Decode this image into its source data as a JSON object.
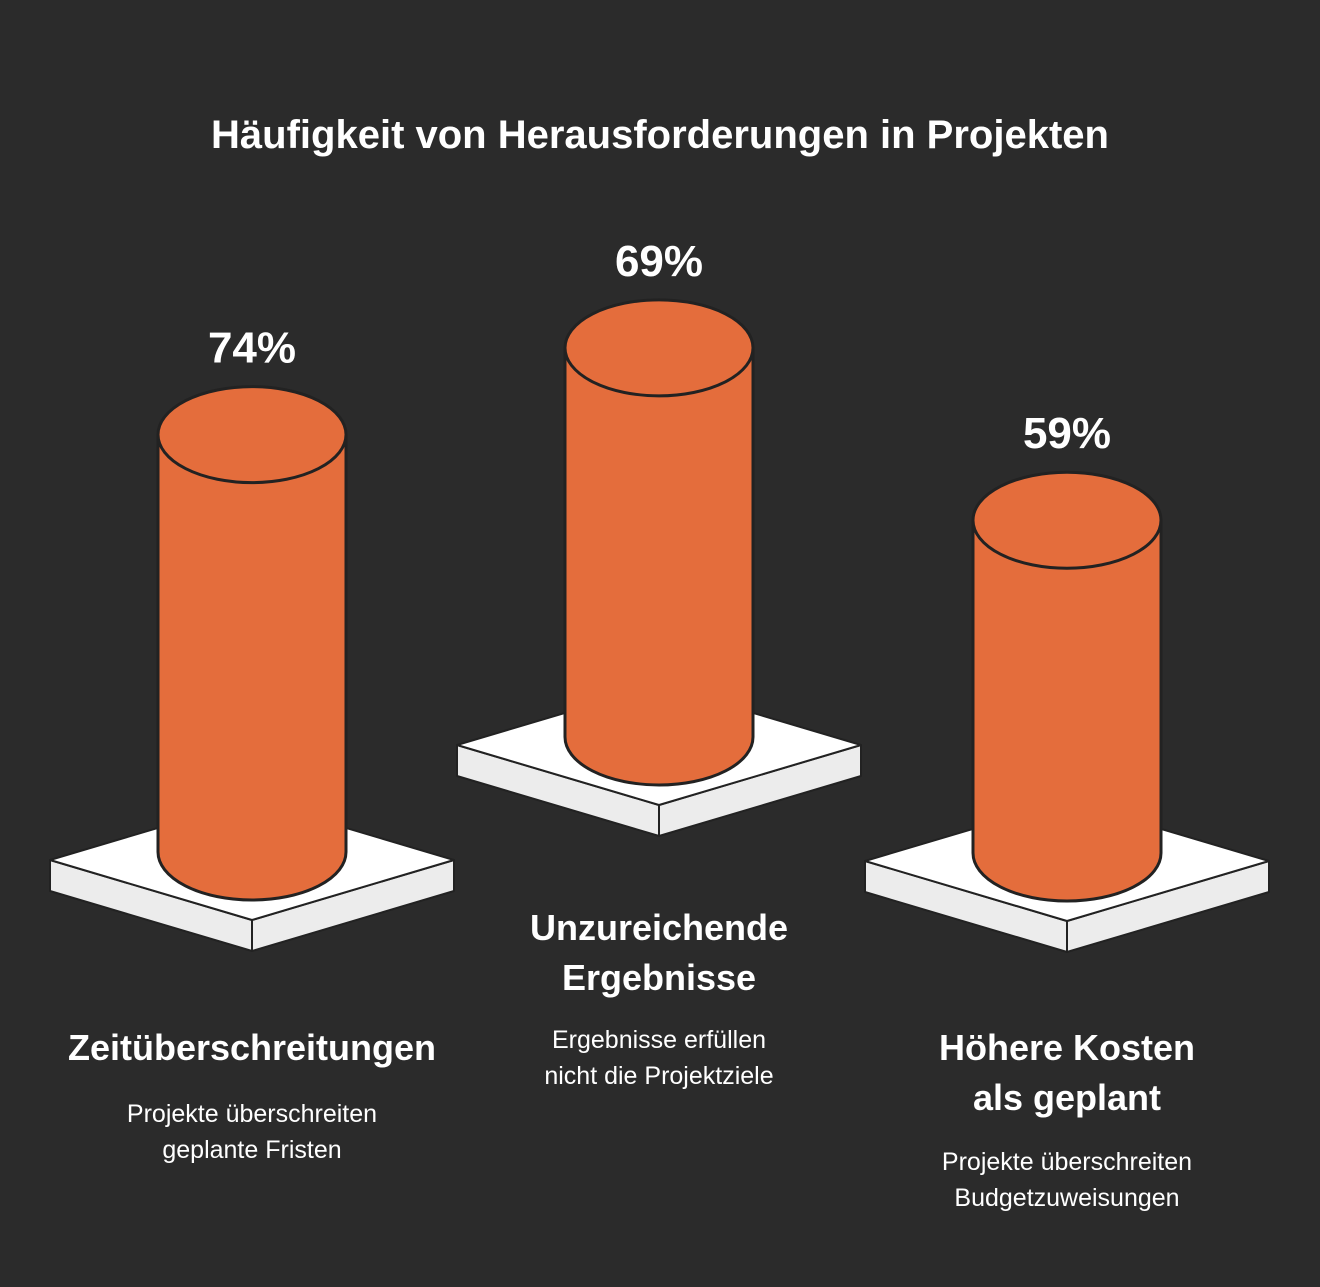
{
  "chart_data": {
    "type": "bar",
    "title": "Häufigkeit von Herausforderungen in Projekten",
    "unit": "%",
    "categories": [
      "Zeitüberschreitungen",
      "Unzureichende Ergebnisse",
      "Höhere Kosten als geplant"
    ],
    "values": [
      74,
      69,
      59
    ],
    "value_labels": [
      "74%",
      "69%",
      "59%"
    ],
    "category_lines": [
      [
        "Zeitüberschreitungen"
      ],
      [
        "Unzureichende",
        "Ergebnisse"
      ],
      [
        "Höhere Kosten",
        "als geplant"
      ]
    ],
    "descriptions": [
      [
        "Projekte überschreiten",
        "geplante Fristen"
      ],
      [
        "Ergebnisse erfüllen",
        "nicht die Projektziele"
      ],
      [
        "Projekte überschreiten",
        "Budgetzuweisungen"
      ]
    ],
    "colors": {
      "background": "#2b2b2b",
      "bar": "#e46d3c",
      "outline": "#222222",
      "platform_top": "#ffffff",
      "platform_side": "#ececec",
      "text": "#ffffff"
    }
  }
}
